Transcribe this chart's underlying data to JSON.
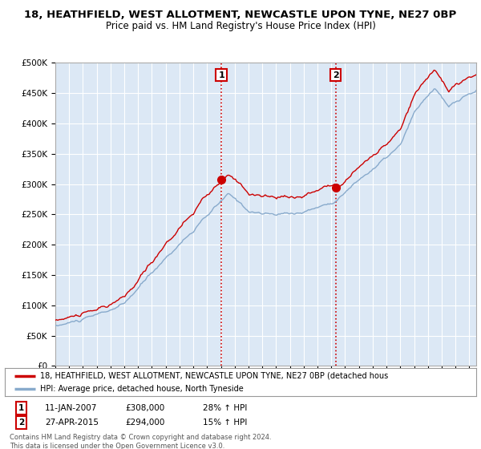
{
  "title_line1": "18, HEATHFIELD, WEST ALLOTMENT, NEWCASTLE UPON TYNE, NE27 0BP",
  "title_line2": "Price paid vs. HM Land Registry's House Price Index (HPI)",
  "ylim": [
    0,
    500000
  ],
  "yticks": [
    0,
    50000,
    100000,
    150000,
    200000,
    250000,
    300000,
    350000,
    400000,
    450000,
    500000
  ],
  "ytick_labels": [
    "£0",
    "£50K",
    "£100K",
    "£150K",
    "£200K",
    "£250K",
    "£300K",
    "£350K",
    "£400K",
    "£450K",
    "£500K"
  ],
  "x_start_year": 1995,
  "x_end_year": 2025,
  "sale1_date": 2007.03,
  "sale1_price": 308000,
  "sale1_label": "1",
  "sale1_text": "11-JAN-2007",
  "sale1_pct": "28% ↑ HPI",
  "sale2_date": 2015.32,
  "sale2_price": 294000,
  "sale2_label": "2",
  "sale2_text": "27-APR-2015",
  "sale2_pct": "15% ↑ HPI",
  "legend_line1": "18, HEATHFIELD, WEST ALLOTMENT, NEWCASTLE UPON TYNE, NE27 0BP (detached hous",
  "legend_line2": "HPI: Average price, detached house, North Tyneside",
  "footer": "Contains HM Land Registry data © Crown copyright and database right 2024.\nThis data is licensed under the Open Government Licence v3.0.",
  "line_color_sale": "#cc0000",
  "line_color_hpi": "#88aacc",
  "background_chart": "#dce8f5",
  "grid_color": "#ffffff",
  "title_fontsize": 9.5,
  "subtitle_fontsize": 8.5
}
